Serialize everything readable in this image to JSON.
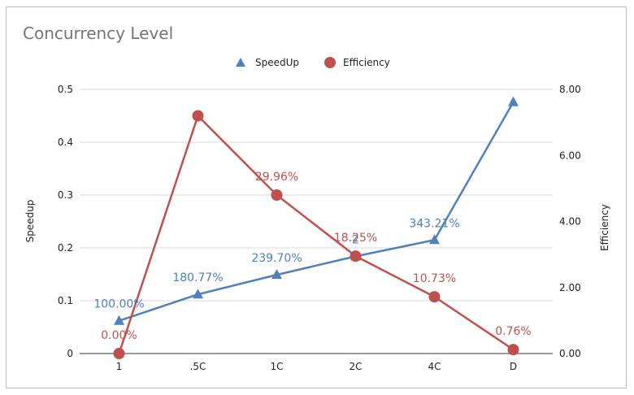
{
  "chart_data": {
    "type": "line",
    "title": "Concurrency Level",
    "categories": [
      "1",
      ".5C",
      "1C",
      "2C",
      "4C",
      "D"
    ],
    "y_left": {
      "label": "Speedup",
      "range": [
        0,
        0.5
      ],
      "ticks": [
        "0",
        "0.1",
        "0.2",
        "0.3",
        "0.4",
        "0.5"
      ]
    },
    "y_right": {
      "label": "Efficiency",
      "range": [
        0,
        8
      ],
      "ticks": [
        "0.00",
        "2.00",
        "4.00",
        "6.00",
        "8.00"
      ]
    },
    "grid": true,
    "legend_position": "top",
    "series": [
      {
        "name": "SpeedUp",
        "axis": "left",
        "marker": "triangle",
        "color": "#4f81bd",
        "values": [
          0.062,
          0.112,
          0.149,
          0.184,
          0.215,
          0.476
        ],
        "labels": [
          "100.00%",
          "180.77%",
          "239.70%",
          "2",
          "343.21%",
          ""
        ]
      },
      {
        "name": "Efficiency",
        "axis": "right",
        "marker": "circle",
        "color": "#c0504d",
        "values": [
          0.0,
          7.2,
          4.8,
          2.95,
          1.72,
          0.12
        ],
        "labels": [
          "0.00%",
          "",
          "29.96%",
          "18.25%",
          "10.73%",
          "0.76%"
        ]
      }
    ]
  }
}
